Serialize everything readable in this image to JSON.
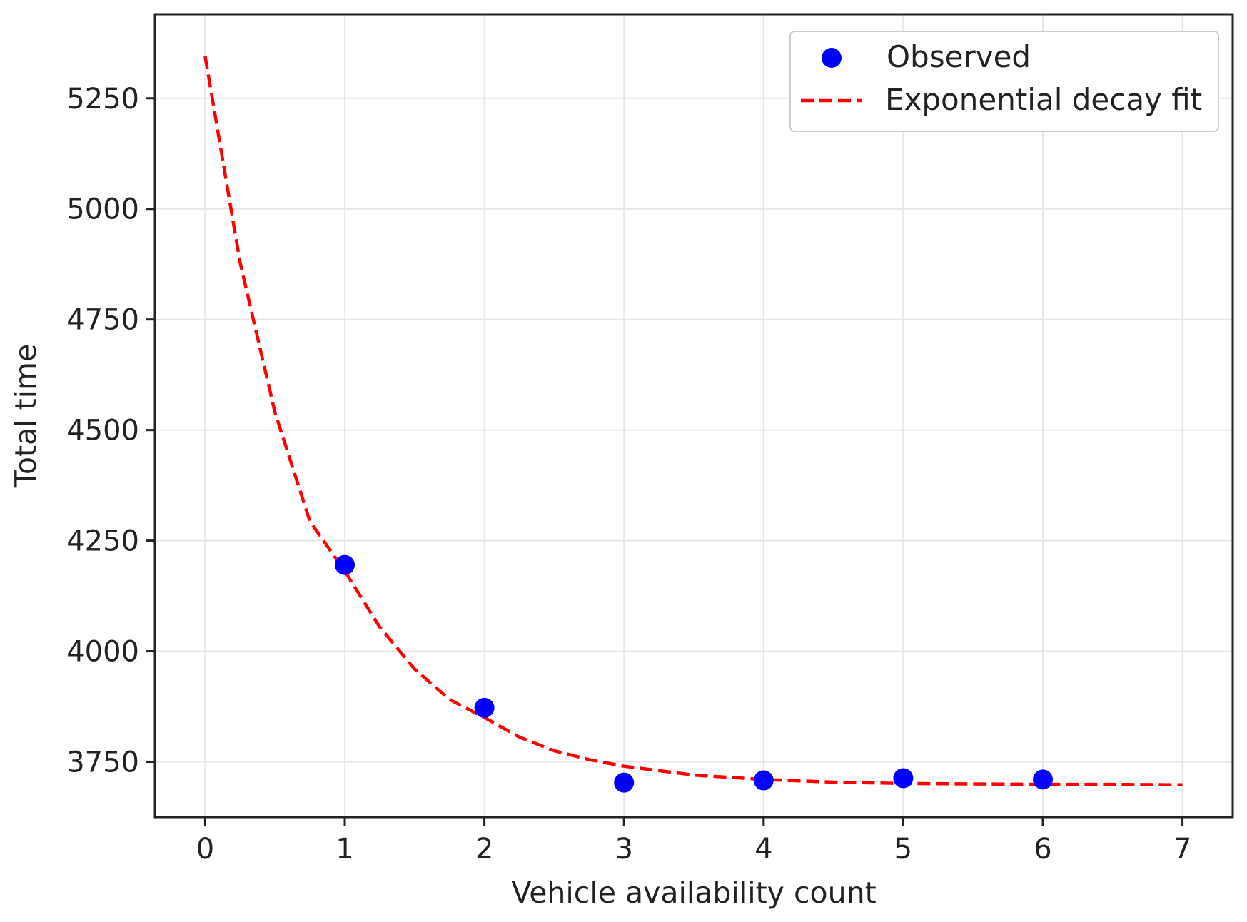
{
  "chart_data": {
    "type": "scatter",
    "title": "",
    "xlabel": "Vehicle availability count",
    "ylabel": "Total time",
    "xlim": [
      -0.36,
      7.36
    ],
    "ylim": [
      3625,
      5440
    ],
    "xticks": [
      0,
      1,
      2,
      3,
      4,
      5,
      6,
      7
    ],
    "yticks": [
      3750,
      4000,
      4250,
      4500,
      4750,
      5000,
      5250
    ],
    "grid": true,
    "legend_position": "top-right",
    "series": [
      {
        "name": "Observed",
        "kind": "scatter",
        "color": "#0000ff",
        "x": [
          1,
          2,
          3,
          4,
          5,
          6
        ],
        "y": [
          4195,
          3872,
          3703,
          3708,
          3713,
          3710
        ]
      },
      {
        "name": "Exponential decay fit",
        "kind": "line",
        "style": "dashed",
        "color": "#ff0000",
        "x": [
          0,
          0.25,
          0.5,
          0.75,
          1,
          1.25,
          1.5,
          1.75,
          2,
          2.25,
          2.5,
          2.75,
          3,
          3.5,
          4,
          4.5,
          5,
          5.5,
          6,
          6.5,
          7
        ],
        "y": [
          5345,
          4879,
          4540,
          4294,
          4181,
          4055,
          3960,
          3891,
          3850,
          3806,
          3775,
          3755,
          3740,
          3720,
          3710,
          3704,
          3701,
          3700,
          3699,
          3699,
          3698
        ]
      }
    ]
  }
}
